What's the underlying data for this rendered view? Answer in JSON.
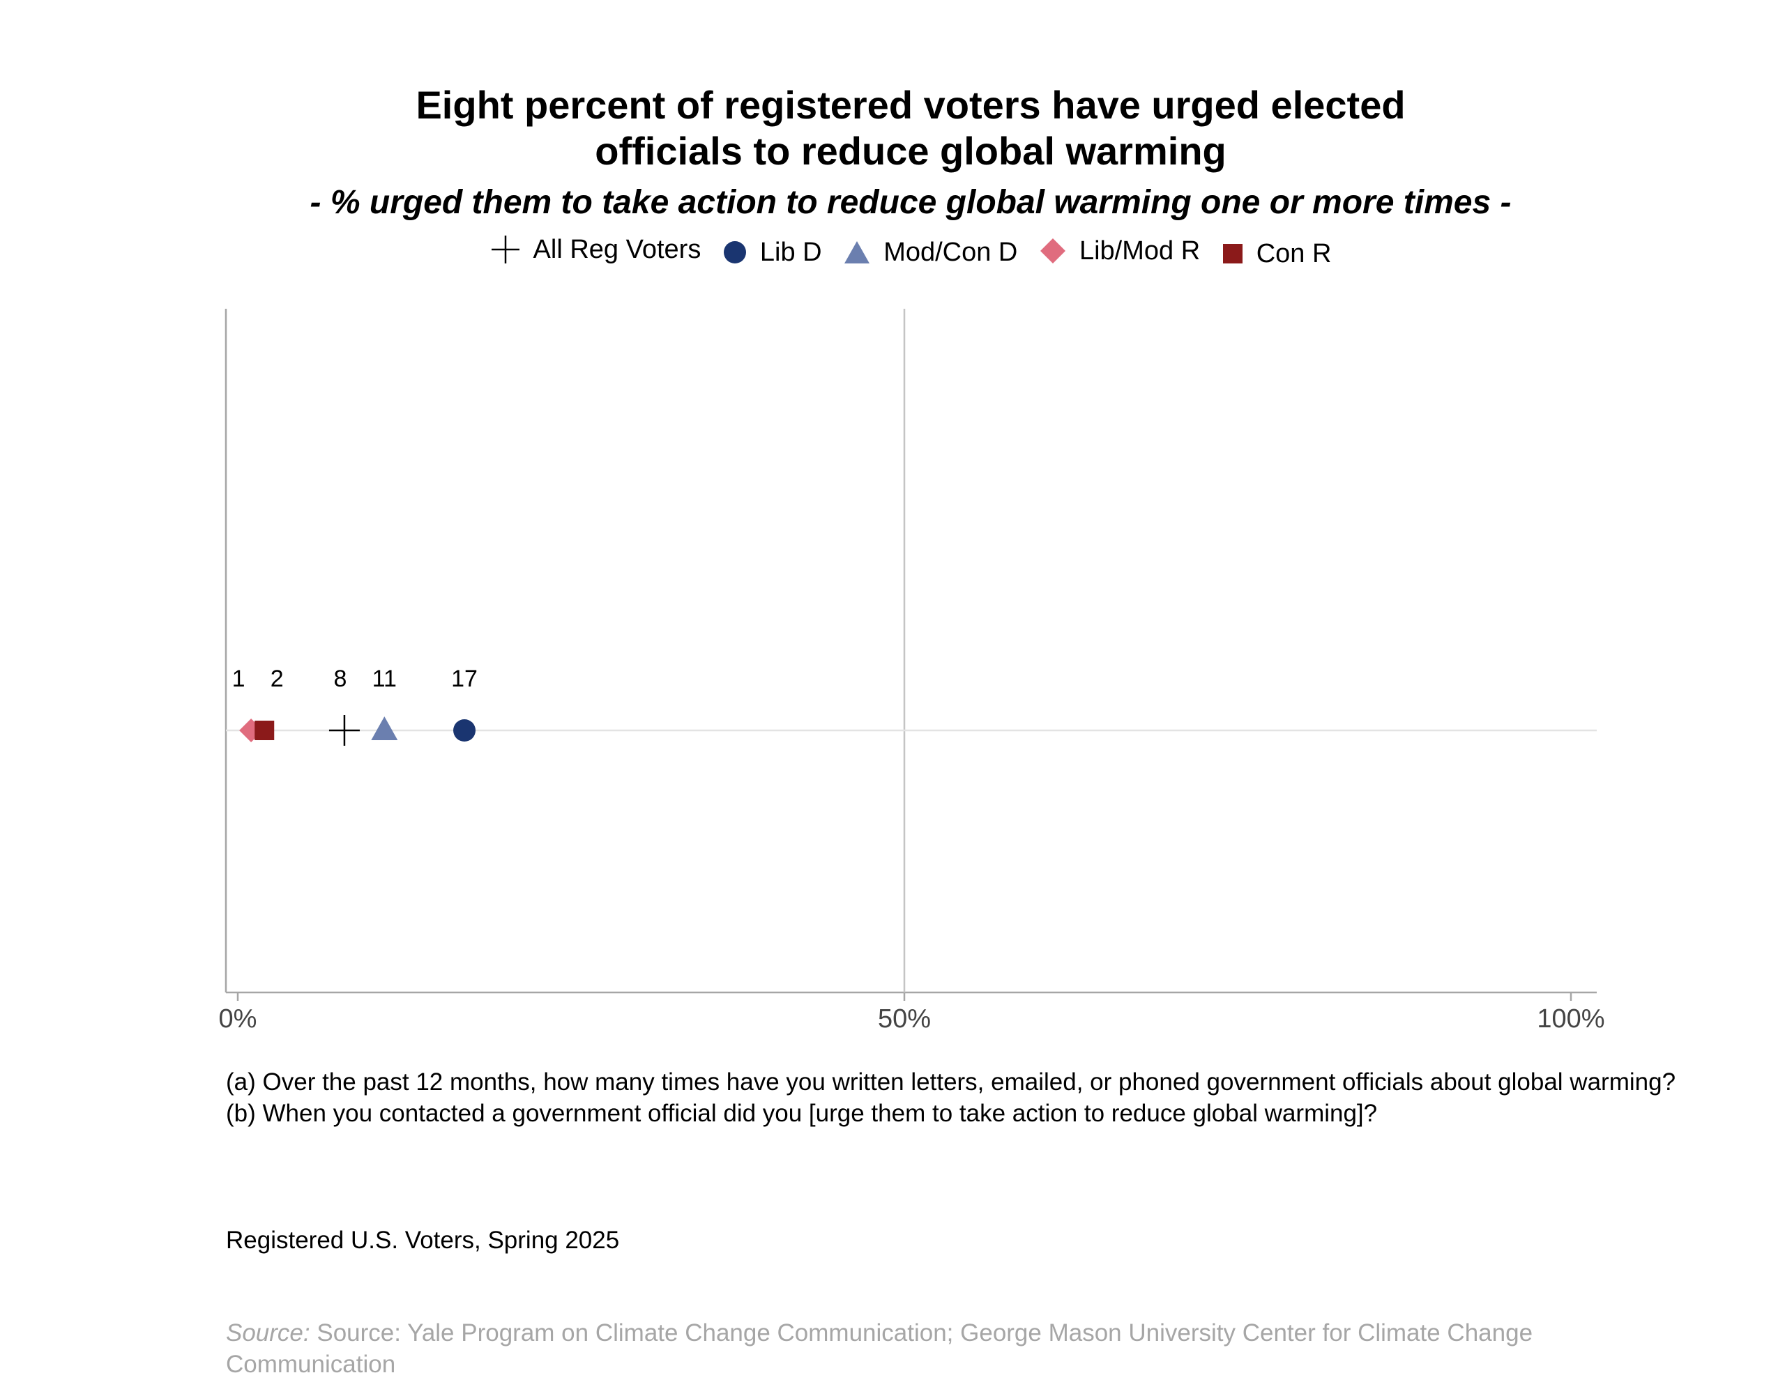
{
  "chart_data": {
    "type": "scatter",
    "title_line1": "Eight percent of registered voters have urged elected",
    "title_line2": "officials to reduce global warming",
    "subtitle": "- % urged them to take action to reduce global warming one or more times -",
    "xlim": [
      0,
      100
    ],
    "x_ticks": [
      0,
      50,
      100
    ],
    "x_tick_labels": [
      "0%",
      "50%",
      "100%"
    ],
    "legend_position": "top",
    "grid": "vertical gridline at 50%",
    "series": [
      {
        "name": "All Reg Voters",
        "value": 8,
        "label": "8",
        "marker": "plus",
        "color": "#000000"
      },
      {
        "name": "Lib D",
        "value": 17,
        "label": "17",
        "marker": "circle",
        "color": "#1a3570"
      },
      {
        "name": "Mod/Con D",
        "value": 11,
        "label": "11",
        "marker": "triangle",
        "color": "#6b7faf"
      },
      {
        "name": "Lib/Mod R",
        "value": 1,
        "label": "1",
        "marker": "diamond",
        "color": "#e06c7e"
      },
      {
        "name": "Con R",
        "value": 2,
        "label": "2",
        "marker": "square",
        "color": "#8b1a1a"
      }
    ]
  },
  "caption": "(a) Over the past 12 months, how many times have you written letters, emailed, or phoned government officials about global warming? (b) When you contacted a government official did you [urge them to take action to reduce global warming]?",
  "population": "Registered U.S. Voters, Spring 2025",
  "source": {
    "prefix": "Source:",
    "text": "Source: Yale Program on Climate Change Communication; George Mason University Center for Climate Change Communication"
  }
}
